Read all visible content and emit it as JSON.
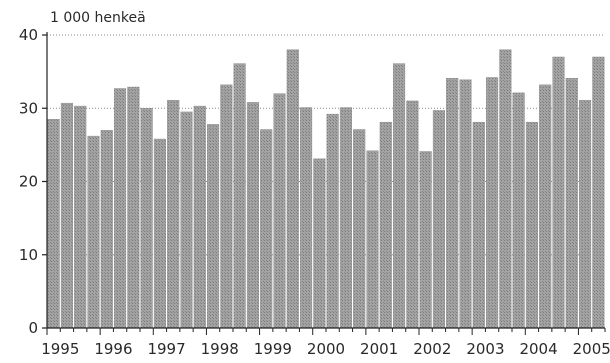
{
  "chart_data": {
    "type": "bar",
    "unit_label": "1 000 henkeä",
    "ylim": [
      0,
      40
    ],
    "y_ticks": [
      "0",
      "10",
      "20",
      "30",
      "40"
    ],
    "x_year_labels": [
      "1995",
      "1996",
      "1997",
      "1998",
      "1999",
      "2000",
      "2001",
      "2002",
      "2003",
      "2004",
      "2005"
    ],
    "grid": "horizontal dotted",
    "bar_color": "#9a9a9a",
    "series": [
      {
        "values": [
          28.5,
          30.7,
          30.3,
          26.2,
          27.0,
          32.7,
          32.9,
          30.0,
          25.8,
          31.1,
          29.5,
          30.3,
          27.8,
          33.2,
          36.1,
          30.8,
          27.1,
          32.0,
          38.0,
          30.1,
          23.1,
          29.2,
          30.1,
          27.1,
          24.2,
          28.1,
          36.1,
          31.0,
          24.1,
          29.7,
          34.1,
          33.9,
          28.1,
          34.2,
          38.0,
          32.1,
          28.1,
          33.2,
          37.0,
          34.1,
          31.1,
          37.0
        ]
      }
    ]
  }
}
